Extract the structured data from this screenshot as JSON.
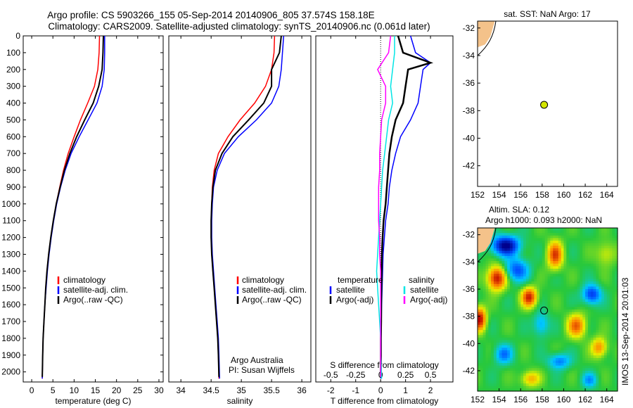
{
  "header": {
    "line1": "Argo profile: CS 5903266_155 05-Sep-2014 20140906_805 37.574S 158.18E",
    "line2": "Climatology: CARS2009. Satellite-adjusted climatology: synTS_20140906.nc (0.061d later)"
  },
  "chart_data": [
    {
      "type": "line",
      "panel": "temperature",
      "xlabel": "temperature (deg C)",
      "ylabel": "",
      "xlim": [
        -2,
        31
      ],
      "ylim": [
        2060,
        0
      ],
      "y_reversed": true,
      "x_ticks": [
        0,
        5,
        10,
        15,
        20,
        25,
        30
      ],
      "y_ticks": [
        0,
        100,
        200,
        300,
        400,
        500,
        600,
        700,
        800,
        900,
        1000,
        1100,
        1200,
        1300,
        1400,
        1500,
        1600,
        1700,
        1800,
        1900,
        2000
      ],
      "legend": [
        "climatology",
        "satellite-adj. clim.",
        "Argo(..raw -QC)"
      ],
      "series": [
        {
          "name": "climatology",
          "color": "#ff0000",
          "x": [
            16.0,
            15.9,
            15.6,
            14.8,
            13.2,
            11.5,
            10.0,
            8.6,
            7.5,
            6.6,
            5.8,
            5.1,
            4.5,
            4.0,
            3.6,
            3.3,
            3.1,
            2.9,
            2.7,
            2.6,
            2.5
          ],
          "y": [
            0,
            100,
            200,
            300,
            400,
            500,
            600,
            700,
            800,
            900,
            1000,
            1100,
            1200,
            1300,
            1400,
            1500,
            1600,
            1700,
            1800,
            1900,
            2040
          ]
        },
        {
          "name": "satellite-adj. clim.",
          "color": "#0000ff",
          "x": [
            17.2,
            17.2,
            17.1,
            16.6,
            15.4,
            13.3,
            11.2,
            9.3,
            7.9,
            6.8,
            5.9,
            5.2,
            4.6,
            4.1,
            3.7,
            3.4,
            3.1,
            2.9,
            2.7,
            2.6,
            2.5
          ],
          "y": [
            0,
            100,
            200,
            300,
            400,
            500,
            600,
            700,
            800,
            900,
            1000,
            1100,
            1200,
            1300,
            1400,
            1500,
            1600,
            1700,
            1800,
            1900,
            2040
          ]
        },
        {
          "name": "Argo(..raw -QC)",
          "color": "#000000",
          "x": [
            16.9,
            16.8,
            16.6,
            15.8,
            14.5,
            12.5,
            10.6,
            9.0,
            7.7,
            6.7,
            5.8,
            5.1,
            4.5,
            4.0,
            3.6,
            3.3,
            3.1,
            2.9,
            2.7,
            2.6,
            2.5
          ],
          "y": [
            0,
            100,
            200,
            300,
            400,
            500,
            600,
            700,
            800,
            900,
            1000,
            1100,
            1200,
            1300,
            1400,
            1500,
            1600,
            1700,
            1800,
            1900,
            2030
          ]
        }
      ]
    },
    {
      "type": "line",
      "panel": "salinity",
      "xlabel": "salinity",
      "xlim": [
        33.8,
        36.15
      ],
      "ylim": [
        2060,
        0
      ],
      "y_reversed": true,
      "x_ticks": [
        34,
        34.5,
        35,
        35.5,
        36
      ],
      "legend": [
        "climatology",
        "satellite-adj. clim.",
        "Argo(..raw -QC)"
      ],
      "annotation": [
        "Argo Australia",
        "PI: Susan Wijffels"
      ],
      "series": [
        {
          "name": "climatology",
          "color": "#ff0000",
          "x": [
            35.55,
            35.54,
            35.5,
            35.4,
            35.22,
            34.98,
            34.78,
            34.62,
            34.55,
            34.52,
            34.51,
            34.5,
            34.5,
            34.51,
            34.53,
            34.55,
            34.57,
            34.59,
            34.61,
            34.62,
            34.63
          ],
          "y": [
            0,
            100,
            200,
            300,
            400,
            500,
            600,
            700,
            800,
            900,
            1000,
            1100,
            1200,
            1300,
            1400,
            1500,
            1600,
            1700,
            1800,
            1900,
            2040
          ]
        },
        {
          "name": "satellite-adj. clim.",
          "color": "#0000ff",
          "x": [
            35.7,
            35.68,
            35.66,
            35.62,
            35.5,
            35.25,
            34.95,
            34.72,
            34.6,
            34.54,
            34.52,
            34.51,
            34.51,
            34.52,
            34.54,
            34.56,
            34.58,
            34.6,
            34.62,
            34.63,
            34.64
          ],
          "y": [
            0,
            100,
            200,
            300,
            400,
            500,
            600,
            700,
            800,
            900,
            1000,
            1100,
            1200,
            1300,
            1400,
            1500,
            1600,
            1700,
            1800,
            1900,
            2040
          ]
        },
        {
          "name": "Argo(..raw -QC)",
          "color": "#000000",
          "x": [
            35.66,
            35.63,
            35.5,
            35.5,
            35.37,
            35.12,
            34.86,
            34.68,
            34.57,
            34.53,
            34.51,
            34.5,
            34.5,
            34.51,
            34.53,
            34.55,
            34.57,
            34.59,
            34.61,
            34.62,
            34.63
          ],
          "y": [
            0,
            100,
            200,
            300,
            400,
            500,
            600,
            700,
            800,
            900,
            1000,
            1100,
            1200,
            1300,
            1400,
            1500,
            1600,
            1700,
            1800,
            1900,
            2030
          ]
        }
      ]
    },
    {
      "type": "line",
      "panel": "difference",
      "xlabel": "T difference from climatology",
      "xlabel_top": "S difference from climatology",
      "xlim": [
        -2.6,
        2.9
      ],
      "s_scale": 0.25,
      "ylim": [
        2060,
        0
      ],
      "y_reversed": true,
      "x_ticks": [
        -2,
        -1,
        0,
        1,
        2
      ],
      "x_tick_labels": [
        "-2",
        "-1",
        "0",
        "1",
        "2"
      ],
      "s_ticks": [
        -0.5,
        -0.25,
        0,
        0.25,
        0.5
      ],
      "s_tick_labels": [
        "-0.5",
        "-0.25",
        "0",
        "0.25",
        "0.5"
      ],
      "legend_headers": [
        "temperature",
        "salinity"
      ],
      "legend": [
        "satellite",
        "Argo(-adj)",
        "satellite",
        "Argo(-adj)"
      ],
      "series": [
        {
          "name": "satellite",
          "quantity": "temperature",
          "color": "#0000ff",
          "x": [
            1.2,
            1.4,
            2.0,
            1.7,
            1.6,
            1.5,
            1.2,
            0.8,
            0.6,
            0.45,
            0.35,
            0.3,
            0.2,
            0.15,
            0.1,
            0.08,
            0.06,
            0.04,
            0.03,
            0.02,
            0.02
          ],
          "y": [
            0,
            100,
            160,
            200,
            300,
            400,
            500,
            600,
            700,
            800,
            900,
            1000,
            1100,
            1200,
            1300,
            1400,
            1500,
            1600,
            1700,
            1800,
            2040
          ]
        },
        {
          "name": "Argo(-adj)",
          "quantity": "temperature",
          "color": "#000000",
          "x": [
            0.7,
            0.9,
            2.0,
            1.1,
            1.0,
            0.9,
            0.6,
            0.45,
            0.35,
            0.3,
            0.25,
            0.2,
            0.12,
            0.08,
            0.05,
            0.04,
            0.03,
            0.02,
            0.02,
            0.01,
            0.01
          ],
          "y": [
            0,
            100,
            160,
            200,
            300,
            400,
            500,
            600,
            700,
            800,
            900,
            1000,
            1100,
            1200,
            1300,
            1400,
            1500,
            1600,
            1700,
            1800,
            2030
          ]
        },
        {
          "name": "satellite",
          "quantity": "salinity",
          "color": "#00e5e5",
          "x": [
            0.14,
            0.14,
            0.12,
            0.1,
            0.12,
            0.08,
            0.06,
            0.04,
            0.02,
            0.01,
            0.0,
            -0.01,
            -0.02,
            -0.03,
            -0.04,
            -0.03,
            -0.02,
            -0.01,
            0.0,
            0.0,
            0.01
          ],
          "y": [
            0,
            100,
            200,
            300,
            400,
            500,
            600,
            700,
            800,
            900,
            1000,
            1100,
            1200,
            1300,
            1400,
            1500,
            1600,
            1700,
            1800,
            1900,
            2040
          ]
        },
        {
          "name": "Argo(-adj)",
          "quantity": "salinity",
          "color": "#ff00ff",
          "x": [
            0.1,
            0.08,
            -0.03,
            0.05,
            0.05,
            0.01,
            0.0,
            -0.01,
            -0.01,
            -0.02,
            -0.02,
            -0.02,
            -0.01,
            -0.01,
            0.0,
            0.0,
            0.0,
            0.0,
            0.0,
            0.0,
            0.0
          ],
          "y": [
            0,
            100,
            200,
            300,
            400,
            500,
            600,
            700,
            800,
            900,
            1000,
            1100,
            1200,
            1300,
            1400,
            1500,
            1600,
            1700,
            1800,
            1900,
            2030
          ]
        }
      ]
    },
    {
      "type": "scatter",
      "panel": "sst-map",
      "title": "sat. SST: NaN Argo: 17",
      "xlim": [
        152,
        165
      ],
      "ylim": [
        -43.5,
        -31.5
      ],
      "x_ticks": [
        152,
        154,
        156,
        158,
        160,
        162,
        164
      ],
      "y_ticks": [
        -32,
        -34,
        -36,
        -38,
        -40,
        -42
      ],
      "points": [
        {
          "x": 158.18,
          "y": -37.574,
          "color": "#d4e600"
        }
      ]
    },
    {
      "type": "heatmap",
      "panel": "sla-map",
      "title_line1": "Altim. SLA: 0.12",
      "title_line2": "Argo h1000: 0.093 h2000: NaN",
      "xlim": [
        152,
        165
      ],
      "ylim": [
        -43.5,
        -31.5
      ],
      "x_ticks": [
        152,
        154,
        156,
        158,
        160,
        162,
        164
      ],
      "y_ticks": [
        -32,
        -34,
        -36,
        -38,
        -40,
        -42
      ],
      "points": [
        {
          "x": 158.18,
          "y": -37.574
        }
      ],
      "blobs": [
        {
          "x": 154.6,
          "y": -32.8,
          "v": -1.0,
          "sx": 0.9,
          "sy": 0.5
        },
        {
          "x": 153.8,
          "y": -35.2,
          "v": 1.0,
          "sx": 0.6,
          "sy": 0.6
        },
        {
          "x": 159.2,
          "y": -33.5,
          "v": 0.8,
          "sx": 0.5,
          "sy": 0.7
        },
        {
          "x": 156.8,
          "y": -36.6,
          "v": 0.9,
          "sx": 0.5,
          "sy": 0.5
        },
        {
          "x": 152.2,
          "y": -38.2,
          "v": 1.0,
          "sx": 0.4,
          "sy": 0.6
        },
        {
          "x": 155.6,
          "y": -34.6,
          "v": -0.6,
          "sx": 0.8,
          "sy": 0.6
        },
        {
          "x": 162.6,
          "y": -36.4,
          "v": -0.7,
          "sx": 0.6,
          "sy": 0.5
        },
        {
          "x": 161.2,
          "y": -38.7,
          "v": 0.7,
          "sx": 0.6,
          "sy": 0.6
        },
        {
          "x": 157.9,
          "y": -38.6,
          "v": -0.4,
          "sx": 0.5,
          "sy": 0.6
        },
        {
          "x": 163.3,
          "y": -40.3,
          "v": 0.6,
          "sx": 0.5,
          "sy": 0.5
        },
        {
          "x": 154.4,
          "y": -40.8,
          "v": -0.5,
          "sx": 0.6,
          "sy": 0.5
        },
        {
          "x": 159.6,
          "y": -41.3,
          "v": -0.5,
          "sx": 0.7,
          "sy": 0.4
        },
        {
          "x": 156.9,
          "y": -42.6,
          "v": 0.5,
          "sx": 0.6,
          "sy": 0.4
        },
        {
          "x": 162.4,
          "y": -42.7,
          "v": -0.4,
          "sx": 0.5,
          "sy": 0.4
        },
        {
          "x": 163.9,
          "y": -33.4,
          "v": 0.3,
          "sx": 0.6,
          "sy": 0.6
        }
      ]
    }
  ],
  "credit": "IMOS 13-Sep-2014 20:01:03"
}
